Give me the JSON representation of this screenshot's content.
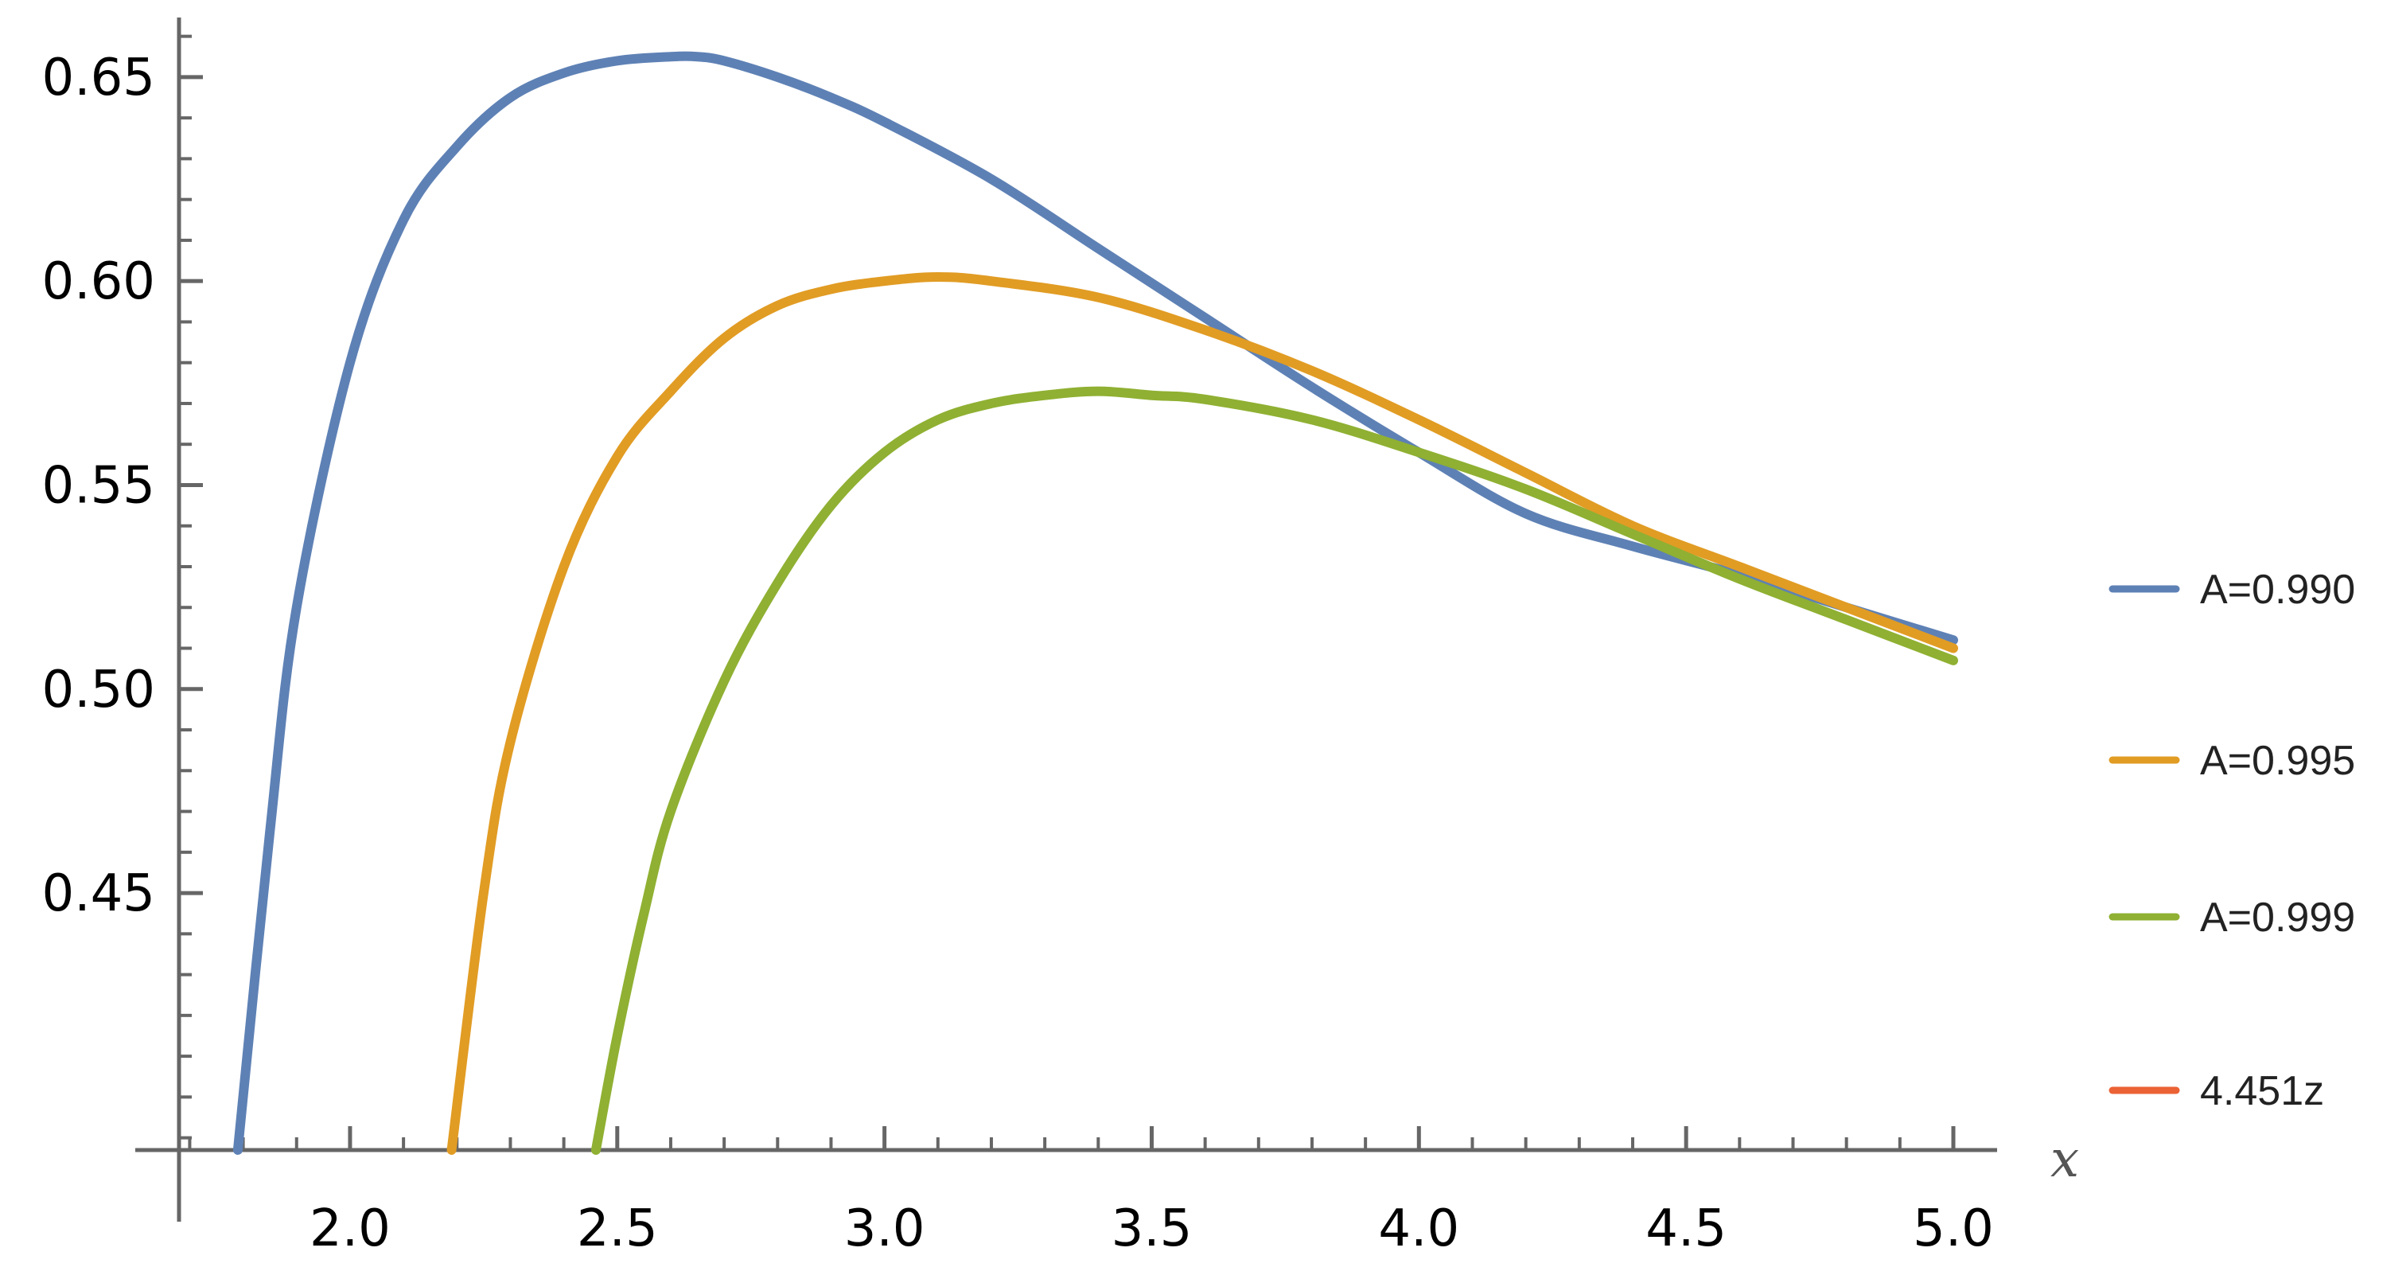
{
  "chart_data": {
    "type": "line",
    "title": "",
    "xlabel": "x",
    "ylabel": "",
    "xlim": [
      1.68,
      5.0
    ],
    "ylim": [
      0.387,
      0.665
    ],
    "x_ticks": [
      2.0,
      2.5,
      3.0,
      3.5,
      4.0,
      4.5,
      5.0
    ],
    "x_tick_labels": [
      "2.0",
      "2.5",
      "3.0",
      "3.5",
      "4.0",
      "4.5",
      "5.0"
    ],
    "y_ticks": [
      0.45,
      0.5,
      0.55,
      0.6,
      0.65
    ],
    "y_tick_labels": [
      "0.45",
      "0.50",
      "0.55",
      "0.60",
      "0.65"
    ],
    "grid": false,
    "legend_position": "right",
    "series": [
      {
        "name": "A=0.990",
        "color": "#5E81B5",
        "x": [
          1.79,
          1.85,
          1.9,
          2.0,
          2.1,
          2.2,
          2.3,
          2.4,
          2.5,
          2.6,
          2.65,
          2.7,
          2.8,
          2.9,
          3.0,
          3.2,
          3.4,
          3.6,
          3.8,
          4.0,
          4.2,
          4.4,
          4.6,
          4.8,
          5.0
        ],
        "y": [
          0.387,
          0.465,
          0.52,
          0.58,
          0.615,
          0.633,
          0.645,
          0.651,
          0.654,
          0.655,
          0.655,
          0.654,
          0.65,
          0.645,
          0.639,
          0.625,
          0.608,
          0.591,
          0.574,
          0.558,
          0.543,
          0.535,
          0.528,
          0.52,
          0.512
        ]
      },
      {
        "name": "A=0.995",
        "color": "#E19C24",
        "x": [
          2.19,
          2.25,
          2.3,
          2.4,
          2.5,
          2.6,
          2.7,
          2.8,
          2.9,
          3.0,
          3.1,
          3.2,
          3.4,
          3.6,
          3.8,
          4.0,
          4.2,
          4.4,
          4.6,
          4.8,
          5.0
        ],
        "y": [
          0.387,
          0.45,
          0.487,
          0.53,
          0.557,
          0.573,
          0.586,
          0.594,
          0.598,
          0.6,
          0.601,
          0.6,
          0.596,
          0.588,
          0.578,
          0.566,
          0.553,
          0.54,
          0.53,
          0.52,
          0.51
        ]
      },
      {
        "name": "A=0.999",
        "color": "#8FB032",
        "x": [
          2.46,
          2.5,
          2.55,
          2.6,
          2.7,
          2.8,
          2.9,
          3.0,
          3.1,
          3.2,
          3.3,
          3.4,
          3.5,
          3.6,
          3.8,
          4.0,
          4.2,
          4.4,
          4.6,
          4.8,
          5.0
        ],
        "y": [
          0.387,
          0.415,
          0.445,
          0.47,
          0.502,
          0.526,
          0.545,
          0.558,
          0.566,
          0.57,
          0.572,
          0.573,
          0.572,
          0.571,
          0.566,
          0.558,
          0.549,
          0.538,
          0.527,
          0.517,
          0.507
        ]
      }
    ],
    "legend": [
      {
        "label": "A=0.990",
        "color": "#5E81B5"
      },
      {
        "label": "A=0.995",
        "color": "#E19C24"
      },
      {
        "label": "A=0.999",
        "color": "#8FB032"
      },
      {
        "label": "4.451z",
        "color": "#EB6235"
      }
    ]
  }
}
